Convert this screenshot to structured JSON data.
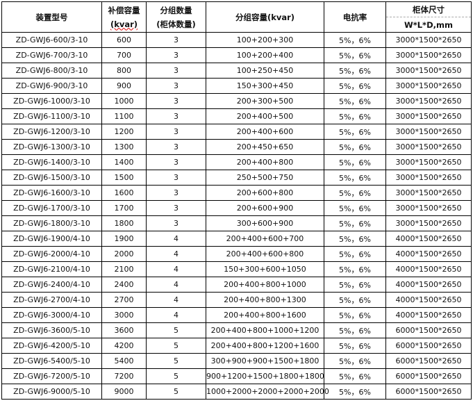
{
  "headers": {
    "model": "装置型号",
    "capacity_l1": "补偿容量",
    "capacity_l2": "(kvar)",
    "groups_l1": "分组数量",
    "groups_l2": "(柜体数量)",
    "group_capacity": "分组容量(kvar)",
    "reactance": "电抗率",
    "size_l1": "柜体尺寸",
    "size_l2": "W*L*D,mm"
  },
  "rows": [
    [
      "ZD-GWJ6-600/3-10",
      "600",
      "3",
      "100+200+300",
      "5%，6%",
      "3000*1500*2650"
    ],
    [
      "ZD-GWJ6-700/3-10",
      "700",
      "3",
      "100+200+400",
      "5%，6%",
      "3000*1500*2650"
    ],
    [
      "ZD-GWJ6-800/3-10",
      "800",
      "3",
      "100+250+450",
      "5%，6%",
      "3000*1500*2650"
    ],
    [
      "ZD-GWJ6-900/3-10",
      "900",
      "3",
      "150+300+450",
      "5%，6%",
      "3000*1500*2650"
    ],
    [
      "ZD-GWJ6-1000/3-10",
      "1000",
      "3",
      "200+300+500",
      "5%，6%",
      "3000*1500*2650"
    ],
    [
      "ZD-GWJ6-1100/3-10",
      "1100",
      "3",
      "200+400+500",
      "5%，6%",
      "3000*1500*2650"
    ],
    [
      "ZD-GWJ6-1200/3-10",
      "1200",
      "3",
      "200+400+600",
      "5%，6%",
      "3000*1500*2650"
    ],
    [
      "ZD-GWJ6-1300/3-10",
      "1300",
      "3",
      "200+450+650",
      "5%，6%",
      "3000*1500*2650"
    ],
    [
      "ZD-GWJ6-1400/3-10",
      "1400",
      "3",
      "200+400+800",
      "5%，6%",
      "3000*1500*2650"
    ],
    [
      "ZD-GWJ6-1500/3-10",
      "1500",
      "3",
      "250+500+750",
      "5%，6%",
      "3000*1500*2650"
    ],
    [
      "ZD-GWJ6-1600/3-10",
      "1600",
      "3",
      "200+600+800",
      "5%，6%",
      "3000*1500*2650"
    ],
    [
      "ZD-GWJ6-1700/3-10",
      "1700",
      "3",
      "200+600+900",
      "5%，6%",
      "3000*1500*2650"
    ],
    [
      "ZD-GWJ6-1800/3-10",
      "1800",
      "3",
      "300+600+900",
      "5%，6%",
      "3000*1500*2650"
    ],
    [
      "ZD-GWJ6-1900/4-10",
      "1900",
      "4",
      "200+400+600+700",
      "5%，6%",
      "4000*1500*2650"
    ],
    [
      "ZD-GWJ6-2000/4-10",
      "2000",
      "4",
      "200+400+600+800",
      "5%，6%",
      "4000*1500*2650"
    ],
    [
      "ZD-GWJ6-2100/4-10",
      "2100",
      "4",
      "150+300+600+1050",
      "5%，6%",
      "4000*1500*2650"
    ],
    [
      "ZD-GWJ6-2400/4-10",
      "2400",
      "4",
      "200+400+800+1000",
      "5%，6%",
      "4000*1500*2650"
    ],
    [
      "ZD-GWJ6-2700/4-10",
      "2700",
      "4",
      "200+400+800+1300",
      "5%，6%",
      "4000*1500*2650"
    ],
    [
      "ZD-GWJ6-3000/4-10",
      "3000",
      "4",
      "200+400+800+1600",
      "5%，6%",
      "4000*1500*2650"
    ],
    [
      "ZD-GWJ6-3600/5-10",
      "3600",
      "5",
      "200+400+800+1000+1200",
      "5%，6%",
      "6000*1500*2650"
    ],
    [
      "ZD-GWJ6-4200/5-10",
      "4200",
      "5",
      "200+400+800+1200+1600",
      "5%，6%",
      "6000*1500*2650"
    ],
    [
      "ZD-GWJ6-5400/5-10",
      "5400",
      "5",
      "300+900+900+1500+1800",
      "5%，6%",
      "6000*1500*2650"
    ],
    [
      "ZD-GWJ6-7200/5-10",
      "7200",
      "5",
      "900+1200+1500+1800+1800",
      "5%，6%",
      "6000*1500*2650"
    ],
    [
      "ZD-GWJ6-9000/5-10",
      "9000",
      "5",
      "1000+2000+2000+2000+2000",
      "5%，6%",
      "6000*1500*2650"
    ]
  ]
}
